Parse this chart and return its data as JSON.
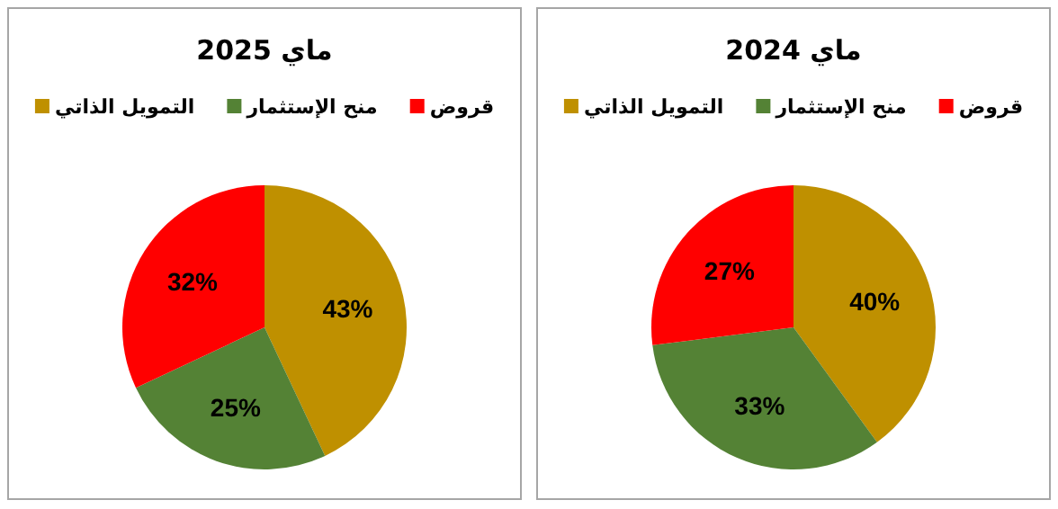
{
  "chart_data": [
    {
      "type": "pie",
      "title": "ماي 2025",
      "categories": [
        "التمويل الذاتي",
        "منح الإستثمار",
        "قروض"
      ],
      "values": [
        43,
        25,
        32
      ],
      "colors": [
        "#bf9000",
        "#548235",
        "#ff0000"
      ],
      "value_labels": [
        "43%",
        "25%",
        "32%"
      ],
      "legend": "top"
    },
    {
      "type": "pie",
      "title": "ماي 2024",
      "categories": [
        "التمويل الذاتي",
        "منح الإستثمار",
        "قروض"
      ],
      "values": [
        40,
        33,
        27
      ],
      "colors": [
        "#bf9000",
        "#548235",
        "#ff0000"
      ],
      "value_labels": [
        "40%",
        "33%",
        "27%"
      ],
      "legend": "top"
    }
  ]
}
